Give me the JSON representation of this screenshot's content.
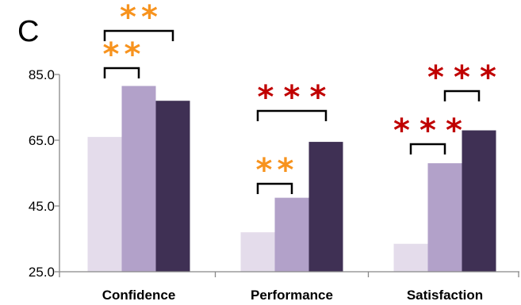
{
  "panel_label": "C",
  "colors": {
    "series": [
      "#e4dceb",
      "#b2a1c9",
      "#3f3054"
    ],
    "star_orange": "#f7931e",
    "star_red": "#c00000",
    "axis": "#888888"
  },
  "chart_data": {
    "type": "bar",
    "title": "",
    "xlabel": "",
    "ylabel": "",
    "categories": [
      "Confidence",
      "Performance",
      "Satisfaction"
    ],
    "series": [
      {
        "values": [
          66,
          37,
          33.5
        ]
      },
      {
        "values": [
          81.5,
          47.5,
          58
        ]
      },
      {
        "values": [
          77,
          64.5,
          68
        ]
      }
    ],
    "ylim": [
      25,
      85
    ],
    "yticks": [
      "25.0",
      "45.0",
      "65.0",
      "85.0"
    ],
    "grid": false,
    "legend": "none",
    "significance": [
      {
        "category": 0,
        "from_series": 0,
        "to_series": 1,
        "label": "**",
        "color": "orange",
        "level": 1
      },
      {
        "category": 0,
        "from_series": 0,
        "to_series": 2,
        "label": "**",
        "color": "orange",
        "level": 2
      },
      {
        "category": 1,
        "from_series": 0,
        "to_series": 1,
        "label": "**",
        "color": "orange",
        "level": 1
      },
      {
        "category": 1,
        "from_series": 0,
        "to_series": 2,
        "label": "***",
        "color": "red",
        "level": 2
      },
      {
        "category": 2,
        "from_series": 0,
        "to_series": 1,
        "label": "***",
        "color": "red",
        "level": 1
      },
      {
        "category": 2,
        "from_series": 1,
        "to_series": 2,
        "label": "***",
        "color": "red",
        "level": 2
      }
    ]
  }
}
